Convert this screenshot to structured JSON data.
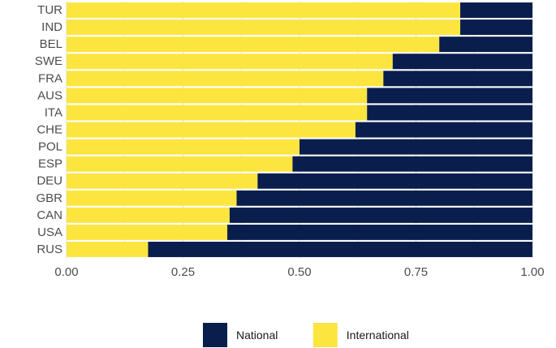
{
  "chart_data": {
    "type": "bar",
    "orientation": "horizontal",
    "stacked": true,
    "title": "",
    "xlabel": "",
    "ylabel": "",
    "xlim": [
      0,
      1
    ],
    "x_ticks": [
      "0.00",
      "0.25",
      "0.50",
      "0.75",
      "1.00"
    ],
    "grid": true,
    "legend_position": "bottom",
    "categories": [
      "TUR",
      "IND",
      "BEL",
      "SWE",
      "FRA",
      "AUS",
      "ITA",
      "CHE",
      "POL",
      "ESP",
      "DEU",
      "GBR",
      "CAN",
      "USA",
      "RUS"
    ],
    "series": [
      {
        "name": "International",
        "color": "#fde540",
        "values": [
          0.845,
          0.845,
          0.8,
          0.7,
          0.68,
          0.645,
          0.645,
          0.62,
          0.5,
          0.485,
          0.41,
          0.365,
          0.35,
          0.345,
          0.175
        ]
      },
      {
        "name": "National",
        "color": "#0a1e4d",
        "values": [
          0.155,
          0.155,
          0.2,
          0.3,
          0.32,
          0.355,
          0.355,
          0.38,
          0.5,
          0.515,
          0.59,
          0.635,
          0.65,
          0.655,
          0.825
        ]
      }
    ],
    "legend_order": [
      "National",
      "International"
    ]
  }
}
